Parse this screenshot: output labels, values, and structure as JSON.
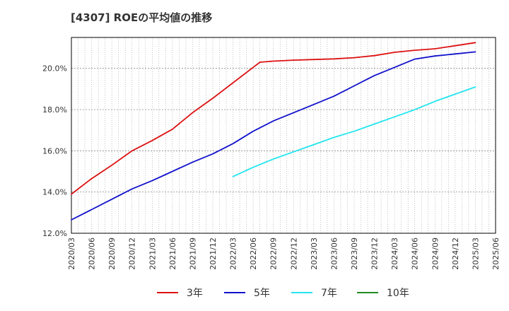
{
  "chart_data": {
    "type": "line",
    "title": "[4307]  ROEの平均値の推移",
    "xlabel": "",
    "ylabel": "",
    "ylim": [
      12.0,
      21.5
    ],
    "yticks": [
      "12.0%",
      "14.0%",
      "16.0%",
      "18.0%",
      "20.0%"
    ],
    "ytick_values": [
      12,
      14,
      16,
      18,
      20
    ],
    "x_start": "2020/03",
    "x_end": "2025/06",
    "xticks": [
      "2020/03",
      "2020/06",
      "2020/09",
      "2020/12",
      "2021/03",
      "2021/06",
      "2021/09",
      "2021/12",
      "2022/03",
      "2022/06",
      "2022/09",
      "2022/12",
      "2023/03",
      "2023/06",
      "2023/09",
      "2023/12",
      "2024/03",
      "2024/06",
      "2024/09",
      "2024/12",
      "2025/03",
      "2025/06"
    ],
    "grid": true,
    "legend_position": "bottom",
    "series": [
      {
        "name": "3年",
        "color": "#dd1111",
        "x": [
          "2020/03",
          "2020/06",
          "2020/09",
          "2020/12",
          "2021/03",
          "2021/06",
          "2021/09",
          "2021/12",
          "2022/03",
          "2022/06",
          "2022/07",
          "2022/09",
          "2022/12",
          "2023/03",
          "2023/06",
          "2023/09",
          "2023/12",
          "2024/03",
          "2024/06",
          "2024/09",
          "2024/12",
          "2025/03"
        ],
        "values": [
          13.9,
          14.65,
          15.3,
          16.0,
          16.5,
          17.05,
          17.85,
          18.55,
          19.3,
          20.05,
          20.3,
          20.35,
          20.4,
          20.43,
          20.46,
          20.52,
          20.62,
          20.78,
          20.88,
          20.95,
          21.1,
          21.25
        ]
      },
      {
        "name": "5年",
        "color": "#1111cc",
        "x": [
          "2020/03",
          "2020/06",
          "2020/09",
          "2020/12",
          "2021/03",
          "2021/06",
          "2021/09",
          "2021/12",
          "2022/03",
          "2022/06",
          "2022/09",
          "2022/12",
          "2023/03",
          "2023/06",
          "2023/09",
          "2023/12",
          "2024/03",
          "2024/06",
          "2024/09",
          "2024/12",
          "2025/03"
        ],
        "values": [
          12.65,
          13.15,
          13.65,
          14.15,
          14.55,
          15.0,
          15.45,
          15.85,
          16.35,
          16.95,
          17.45,
          17.85,
          18.25,
          18.65,
          19.15,
          19.65,
          20.05,
          20.45,
          20.6,
          20.7,
          20.8
        ]
      },
      {
        "name": "7年",
        "color": "#22e5ee",
        "x": [
          "2022/03",
          "2022/06",
          "2022/09",
          "2022/12",
          "2023/03",
          "2023/06",
          "2023/09",
          "2023/12",
          "2024/03",
          "2024/06",
          "2024/09",
          "2024/12",
          "2025/03"
        ],
        "values": [
          14.75,
          15.2,
          15.6,
          15.95,
          16.3,
          16.65,
          16.95,
          17.3,
          17.65,
          18.0,
          18.4,
          18.75,
          19.1
        ]
      },
      {
        "name": "10年",
        "color": "#228b22",
        "x": [],
        "values": []
      }
    ]
  }
}
